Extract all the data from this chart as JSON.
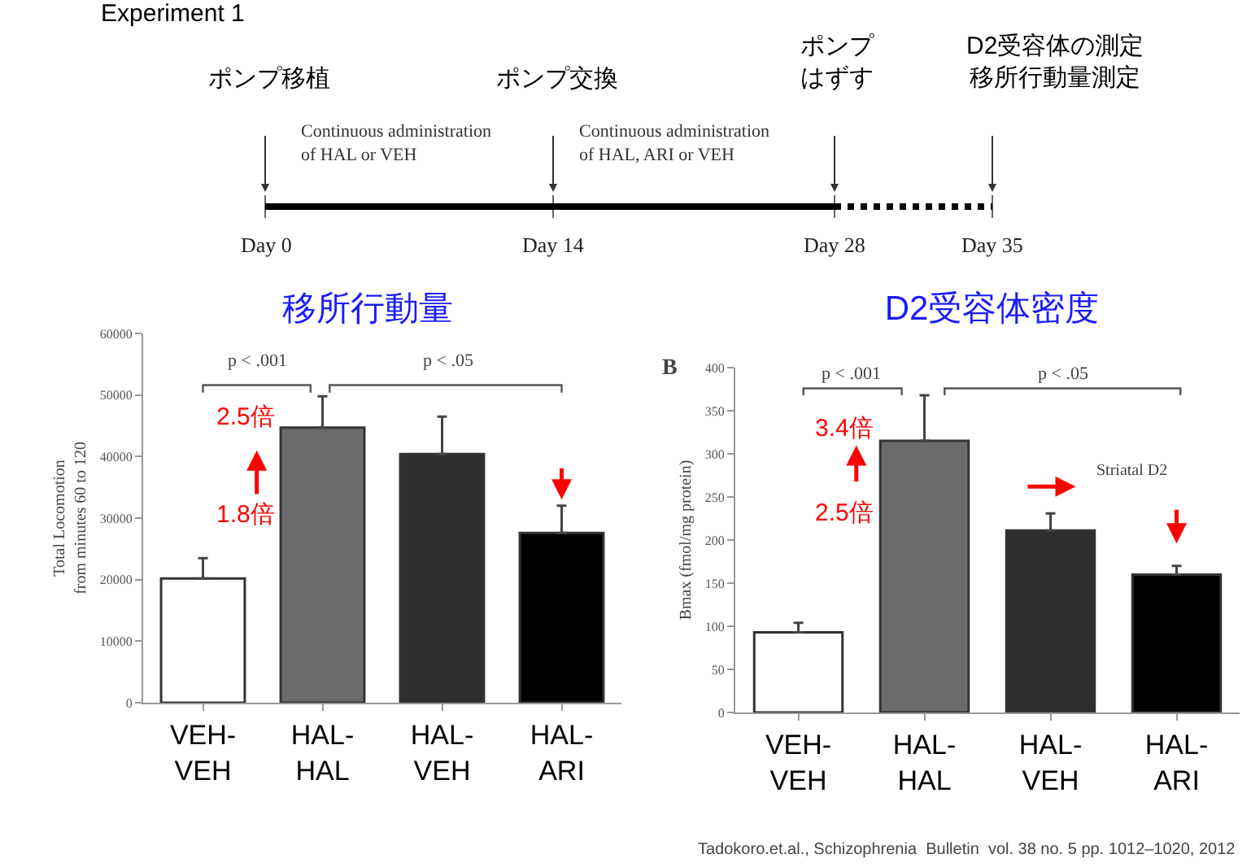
{
  "chart_data": [
    {
      "type": "other",
      "title": "Experiment 1",
      "annotations": [
        "ポンプ移植",
        "ポンプ交換",
        "ポンプはずす",
        "D2受容体の測定移所行動量測定",
        "Continuous administration of HAL or VEH",
        "Continuous administration of HAL, ARI or VEH",
        "Day 0",
        "Day 14",
        "Day 28",
        "Day 35"
      ]
    },
    {
      "type": "bar",
      "title": "移所行動量",
      "ylabel": "Total Locomotion\nfrom minutes 60 to 120",
      "categories": [
        "VEH-\nVEH",
        "HAL-\nHAL",
        "HAL-\nVEH",
        "HAL-\nARI"
      ],
      "values": [
        20200,
        44700,
        40400,
        27600
      ],
      "errors": [
        3300,
        5100,
        6100,
        4400
      ],
      "colors": [
        "#ffffff",
        "#6b6b6b",
        "#2e2e2e",
        "#000000"
      ],
      "ylim": [
        0,
        60000
      ],
      "yticks": [
        0,
        10000,
        20000,
        30000,
        40000,
        50000,
        60000
      ],
      "annotations": [
        "p < .001",
        "p < .05",
        "2.5倍",
        "1.8倍"
      ]
    },
    {
      "type": "bar",
      "title": "D2受容体密度",
      "ylabel": "Bmax (fmol/mg protein)",
      "categories": [
        "VEH-\nVEH",
        "HAL-\nHAL",
        "HAL-\nVEH",
        "HAL-\nARI"
      ],
      "values": [
        93,
        315,
        211,
        160
      ],
      "errors": [
        11,
        53,
        20,
        10
      ],
      "colors": [
        "#ffffff",
        "#6b6b6b",
        "#2e2e2e",
        "#000000"
      ],
      "ylim": [
        0,
        400
      ],
      "yticks": [
        0,
        50,
        100,
        150,
        200,
        250,
        300,
        350,
        400
      ],
      "annotations": [
        "B",
        "p < .001",
        "p < .05",
        "3.4倍",
        "2.5倍",
        "Striatal D2",
        "Tadokoro.et.al., Schizophrenia  Bulletin  vol. 38 no. 5 pp. 1012–1020, 2012"
      ]
    }
  ]
}
